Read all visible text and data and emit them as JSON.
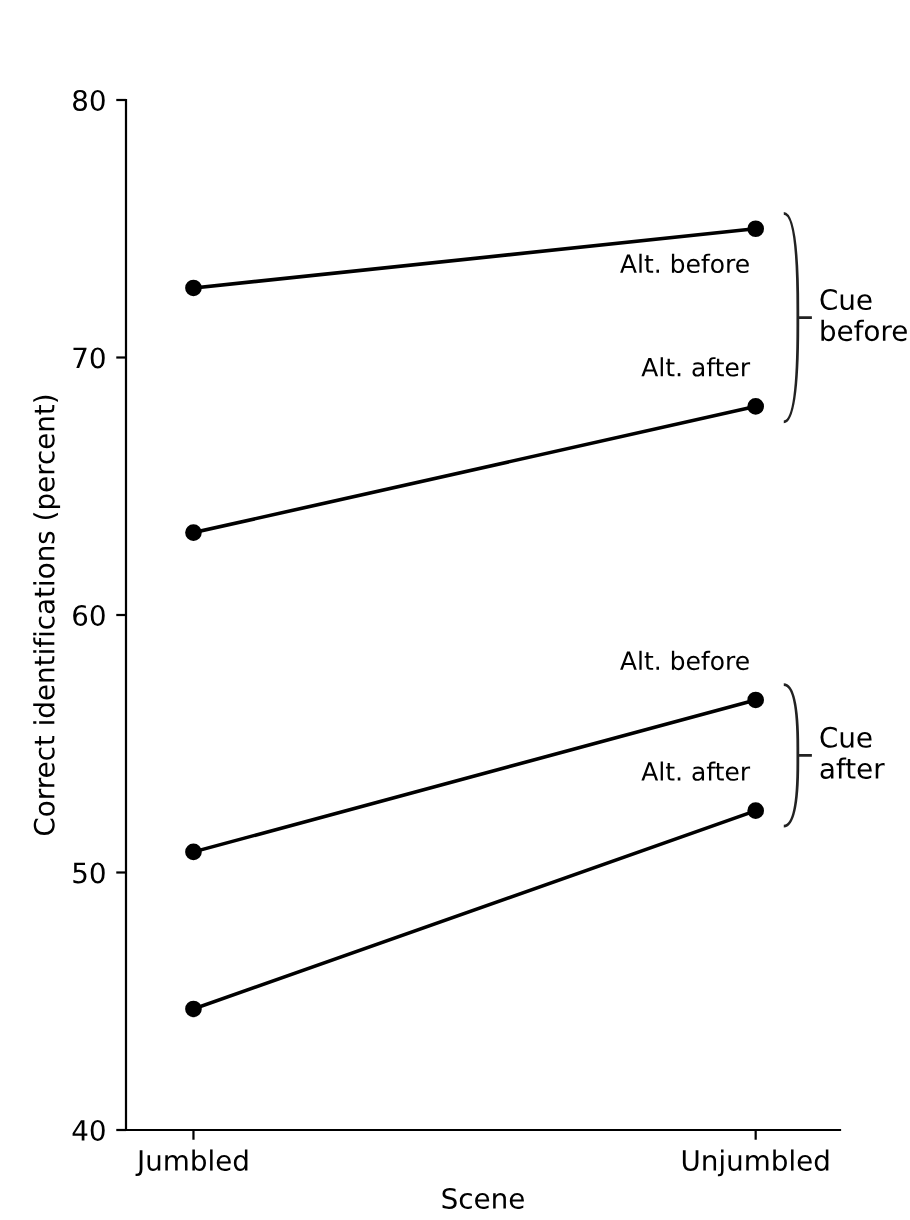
{
  "chart_data": {
    "type": "line",
    "xlabel": "Scene",
    "ylabel": "Correct identifications (percent)",
    "categories": [
      "Jumbled",
      "Unjumbled"
    ],
    "series": [
      {
        "name": "Alt. before",
        "color": "#000000",
        "values": [
          72.7,
          75.0
        ]
      },
      {
        "name": "Alt. after",
        "color": "#000000",
        "values": [
          63.2,
          68.1
        ]
      },
      {
        "name": "Alt. before",
        "color": "#000000",
        "values": [
          50.8,
          56.7
        ]
      },
      {
        "name": "Alt. after",
        "color": "#000000",
        "values": [
          44.7,
          52.4
        ]
      }
    ],
    "ylim": [
      40,
      80
    ],
    "yticks": [
      40,
      50,
      60,
      70,
      80
    ],
    "marker": "circle",
    "line_style": "solid",
    "grid": false,
    "annotations": [
      "Cue before",
      "Cue after"
    ]
  }
}
